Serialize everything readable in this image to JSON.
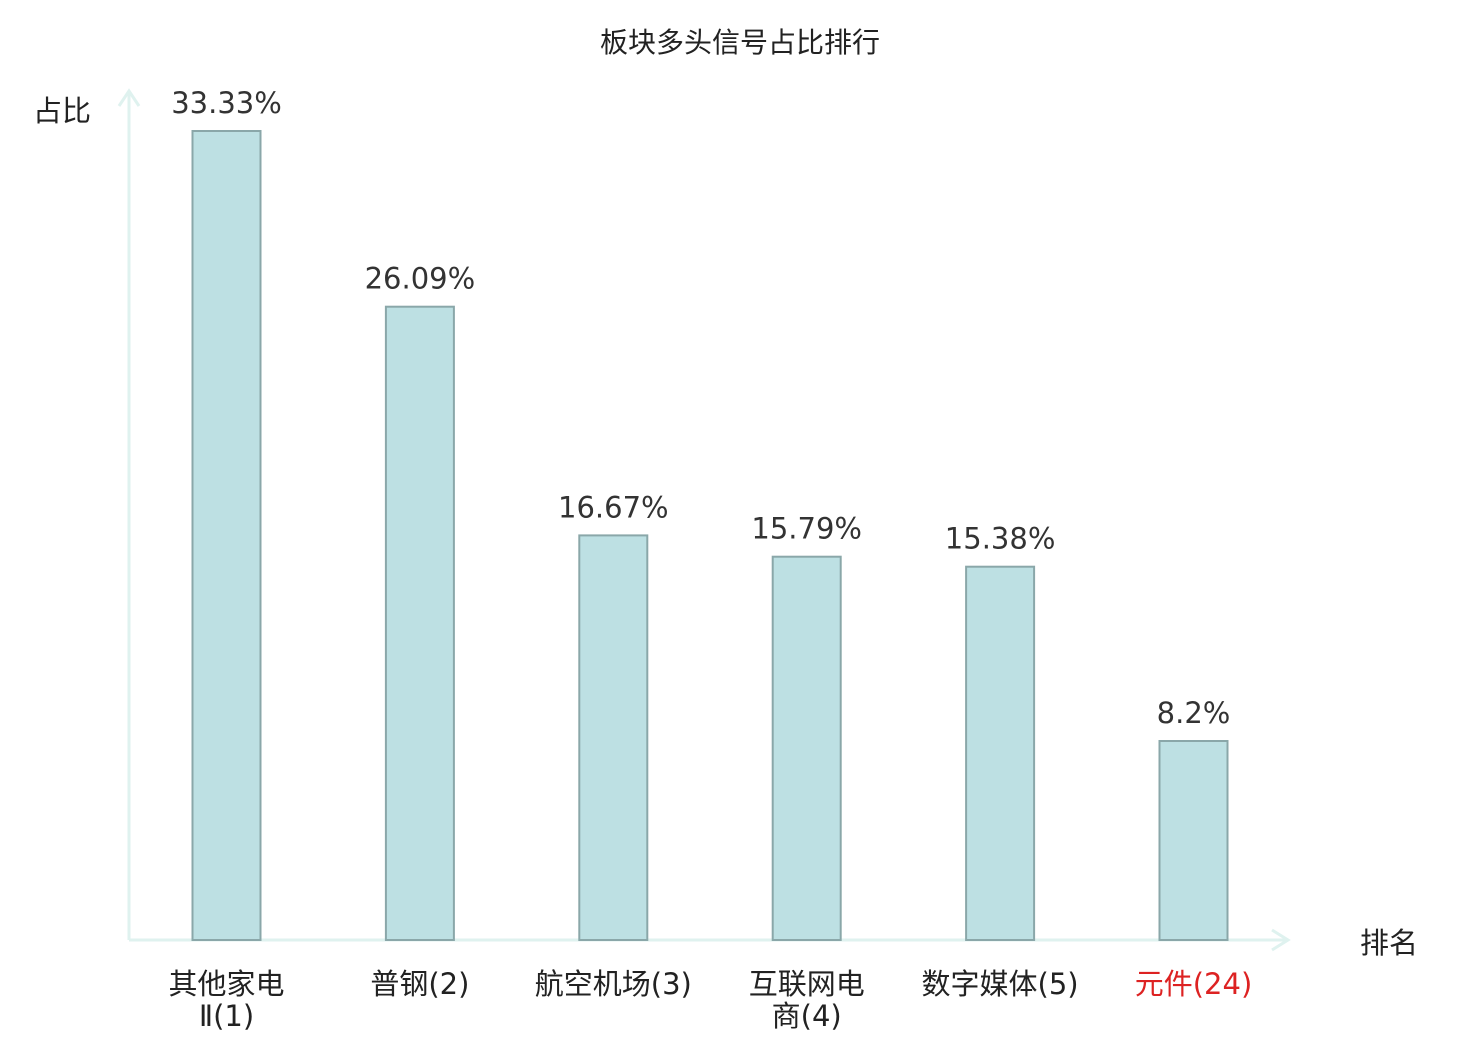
{
  "chart_data": {
    "type": "bar",
    "title": "板块多头信号占比排行",
    "ylabel": "占比",
    "xlabel": "排名",
    "categories": [
      {
        "lines": [
          "其他家电",
          "Ⅱ(1)"
        ],
        "highlight": false
      },
      {
        "lines": [
          "普钢(2)"
        ],
        "highlight": false
      },
      {
        "lines": [
          "航空机场(3)"
        ],
        "highlight": false
      },
      {
        "lines": [
          "互联网电",
          "商(4)"
        ],
        "highlight": false
      },
      {
        "lines": [
          "数字媒体(5)"
        ],
        "highlight": false
      },
      {
        "lines": [
          "元件(24)"
        ],
        "highlight": true
      }
    ],
    "values": [
      33.33,
      26.09,
      16.67,
      15.79,
      15.38,
      8.2
    ],
    "value_labels": [
      "33.33%",
      "26.09%",
      "16.67%",
      "15.79%",
      "15.38%",
      "8.2%"
    ],
    "ylim": [
      0,
      33.33
    ],
    "grid": false,
    "colors": {
      "bar_fill": "#bde0e3",
      "bar_stroke": "#8aa7a9",
      "axis": "#dff2ef",
      "text": "#333333",
      "title": "#222222",
      "highlight": "#dd2222"
    }
  }
}
